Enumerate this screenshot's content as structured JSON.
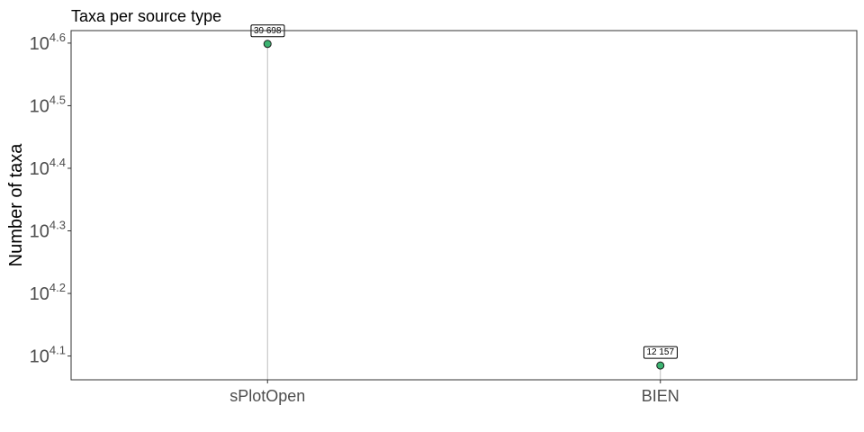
{
  "chart_data": {
    "type": "lollipop",
    "title": "Taxa per source type",
    "xlabel": "",
    "ylabel": "Number of taxa",
    "yscale": "log10",
    "ylim_log10": [
      4.062,
      4.62
    ],
    "ytick_base": "10",
    "ytick_exponents": [
      "4.1",
      "4.2",
      "4.3",
      "4.4",
      "4.5",
      "4.6"
    ],
    "categories": [
      "sPlotOpen",
      "BIEN"
    ],
    "values": [
      39698,
      12157
    ],
    "data_labels": [
      "39 698",
      "12 157"
    ],
    "colors": {
      "point": "#3cb371",
      "stem": "#bdbdbd",
      "frame": "#333333"
    },
    "grid": false,
    "legend": "none"
  }
}
